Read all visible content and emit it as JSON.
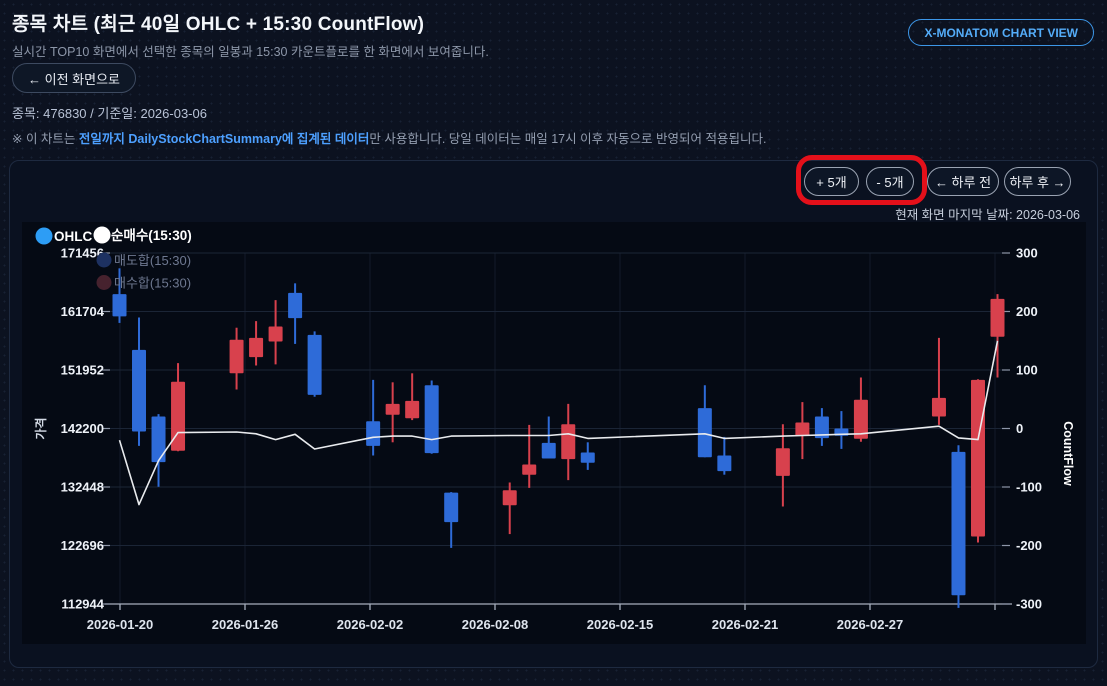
{
  "header": {
    "title": "종목 차트 (최근 40일 OHLC + 15:30 CountFlow)",
    "subtitle": "실시간 TOP10 화면에서 선택한 종목의 일봉과 15:30 카운트플로를 한 화면에서 보여줍니다.",
    "back_button": "← 이전 화면으로",
    "stock_info": "종목: 476830 / 기준일: 2026-03-06",
    "note_prefix": "※ 이 차트는 ",
    "note_highlight": "전일까지 DailyStockChartSummary에 집계된 데이터",
    "note_suffix": "만 사용합니다. 당일 데이터는 매일 17시 이후 자동으로 반영되어 적용됩니다.",
    "view_button": "X-MONATOM CHART VIEW"
  },
  "toolbar": {
    "add5": "+ 5개",
    "sub5": "- 5개",
    "prev_day": "← 하루 전",
    "next_day": "하루 후 →",
    "last_date_caption": "현재 화면 마지막 날짜: 2026-03-06"
  },
  "chart_data": {
    "type": "candlestick+line",
    "x_axis": {
      "tick_labels": [
        "2026-01-20",
        "2026-01-26",
        "2026-02-02",
        "2026-02-08",
        "2026-02-15",
        "2026-02-21",
        "2026-02-27"
      ],
      "span_days": 45
    },
    "y_left": {
      "label": "가격",
      "min": 112944,
      "max": 171456,
      "ticks": [
        171456,
        161704,
        151952,
        142200,
        132448,
        122696,
        112944
      ]
    },
    "y_right": {
      "label": "CountFlow",
      "min": -300,
      "max": 300,
      "ticks": [
        300,
        200,
        100,
        0,
        -100,
        -200,
        -300
      ],
      "zero_price": 142200
    },
    "legend": [
      {
        "label": "OHLC",
        "color": "#2d9df5",
        "text_color": "#ffffff",
        "enabled": true
      },
      {
        "label": "순매수(15:30)",
        "color": "#ffffff",
        "text_color": "#ffffff",
        "enabled": true
      },
      {
        "label": "매도합(15:30)",
        "color": "#1d3161",
        "text_color": "#6e7890",
        "enabled": false
      },
      {
        "label": "매수합(15:30)",
        "color": "#46222e",
        "text_color": "#6e7890",
        "enabled": false
      }
    ],
    "colors": {
      "up": "#d8414d",
      "down": "#2e6bd8",
      "flow_line": "#e9ebee",
      "grid": "#1b2536",
      "vgrid": "#131b2a",
      "axis": "#a6aebc",
      "plot_bg": "#050a14"
    },
    "candles": [
      {
        "date": "2026-01-20",
        "day": 0,
        "open": 164600,
        "high": 168900,
        "low": 159800,
        "close": 160900,
        "flow": -20
      },
      {
        "date": "2026-01-21",
        "day": 1,
        "open": 155300,
        "high": 160700,
        "low": 139300,
        "close": 141700,
        "flow": -130
      },
      {
        "date": "2026-01-22",
        "day": 2,
        "open": 144200,
        "high": 144600,
        "low": 132500,
        "close": 136600,
        "flow": -55
      },
      {
        "date": "2026-01-23",
        "day": 3,
        "open": 138500,
        "high": 153100,
        "low": 138400,
        "close": 150000,
        "flow": -7
      },
      {
        "date": "2026-01-26",
        "day": 6,
        "open": 151400,
        "high": 159000,
        "low": 148700,
        "close": 157000,
        "flow": -6
      },
      {
        "date": "2026-01-27",
        "day": 7,
        "open": 154100,
        "high": 160100,
        "low": 152700,
        "close": 157300,
        "flow": -9
      },
      {
        "date": "2026-01-28",
        "day": 8,
        "open": 156700,
        "high": 163600,
        "low": 152900,
        "close": 159200,
        "flow": -19
      },
      {
        "date": "2026-01-29",
        "day": 9,
        "open": 164800,
        "high": 166400,
        "low": 156300,
        "close": 160600,
        "flow": -10
      },
      {
        "date": "2026-01-30",
        "day": 10,
        "open": 157800,
        "high": 158400,
        "low": 147500,
        "close": 147800,
        "flow": -35
      },
      {
        "date": "2026-02-02",
        "day": 13,
        "open": 143400,
        "high": 150300,
        "low": 137700,
        "close": 139300,
        "flow": -15
      },
      {
        "date": "2026-02-03",
        "day": 14,
        "open": 144500,
        "high": 149900,
        "low": 139900,
        "close": 146300,
        "flow": -13
      },
      {
        "date": "2026-02-04",
        "day": 15,
        "open": 143900,
        "high": 151400,
        "low": 143600,
        "close": 146800,
        "flow": -13
      },
      {
        "date": "2026-02-05",
        "day": 16,
        "open": 149400,
        "high": 150200,
        "low": 138000,
        "close": 138100,
        "flow": -19
      },
      {
        "date": "2026-02-06",
        "day": 17,
        "open": 131500,
        "high": 131600,
        "low": 122300,
        "close": 126600,
        "flow": -13
      },
      {
        "date": "2026-02-09",
        "day": 20,
        "open": 129400,
        "high": 133200,
        "low": 124600,
        "close": 131900,
        "flow": -12
      },
      {
        "date": "2026-02-10",
        "day": 21,
        "open": 134500,
        "high": 142800,
        "low": 132300,
        "close": 136200,
        "flow": -12
      },
      {
        "date": "2026-02-11",
        "day": 22,
        "open": 139800,
        "high": 144200,
        "low": 137200,
        "close": 137200,
        "flow": -12
      },
      {
        "date": "2026-02-12",
        "day": 23,
        "open": 137100,
        "high": 146300,
        "low": 133600,
        "close": 142900,
        "flow": -9
      },
      {
        "date": "2026-02-13",
        "day": 24,
        "open": 138200,
        "high": 139900,
        "low": 135300,
        "close": 136500,
        "flow": -17
      },
      {
        "date": "2026-02-19",
        "day": 30,
        "open": 145600,
        "high": 149400,
        "low": 137400,
        "close": 137400,
        "flow": -9
      },
      {
        "date": "2026-02-20",
        "day": 31,
        "open": 137700,
        "high": 140800,
        "low": 134500,
        "close": 135100,
        "flow": -17
      },
      {
        "date": "2026-02-23",
        "day": 34,
        "open": 134300,
        "high": 142900,
        "low": 129200,
        "close": 138900,
        "flow": -13
      },
      {
        "date": "2026-02-24",
        "day": 35,
        "open": 141000,
        "high": 146600,
        "low": 137100,
        "close": 143200,
        "flow": -12
      },
      {
        "date": "2026-02-25",
        "day": 36,
        "open": 144200,
        "high": 145600,
        "low": 139300,
        "close": 140600,
        "flow": -11
      },
      {
        "date": "2026-02-26",
        "day": 37,
        "open": 142200,
        "high": 145100,
        "low": 138800,
        "close": 141000,
        "flow": -10
      },
      {
        "date": "2026-02-27",
        "day": 38,
        "open": 140500,
        "high": 150700,
        "low": 140000,
        "close": 147000,
        "flow": -9
      },
      {
        "date": "2026-03-03",
        "day": 42,
        "open": 144200,
        "high": 157300,
        "low": 142800,
        "close": 147300,
        "flow": 4
      },
      {
        "date": "2026-03-04",
        "day": 43,
        "open": 138300,
        "high": 139400,
        "low": 112300,
        "close": 114400,
        "flow": -16
      },
      {
        "date": "2026-03-05",
        "day": 44,
        "open": 124200,
        "high": 150400,
        "low": 123200,
        "close": 150300,
        "flow": -19
      },
      {
        "date": "2026-03-06",
        "day": 45,
        "open": 157500,
        "high": 164600,
        "low": 150700,
        "close": 163800,
        "flow": 150
      }
    ]
  }
}
